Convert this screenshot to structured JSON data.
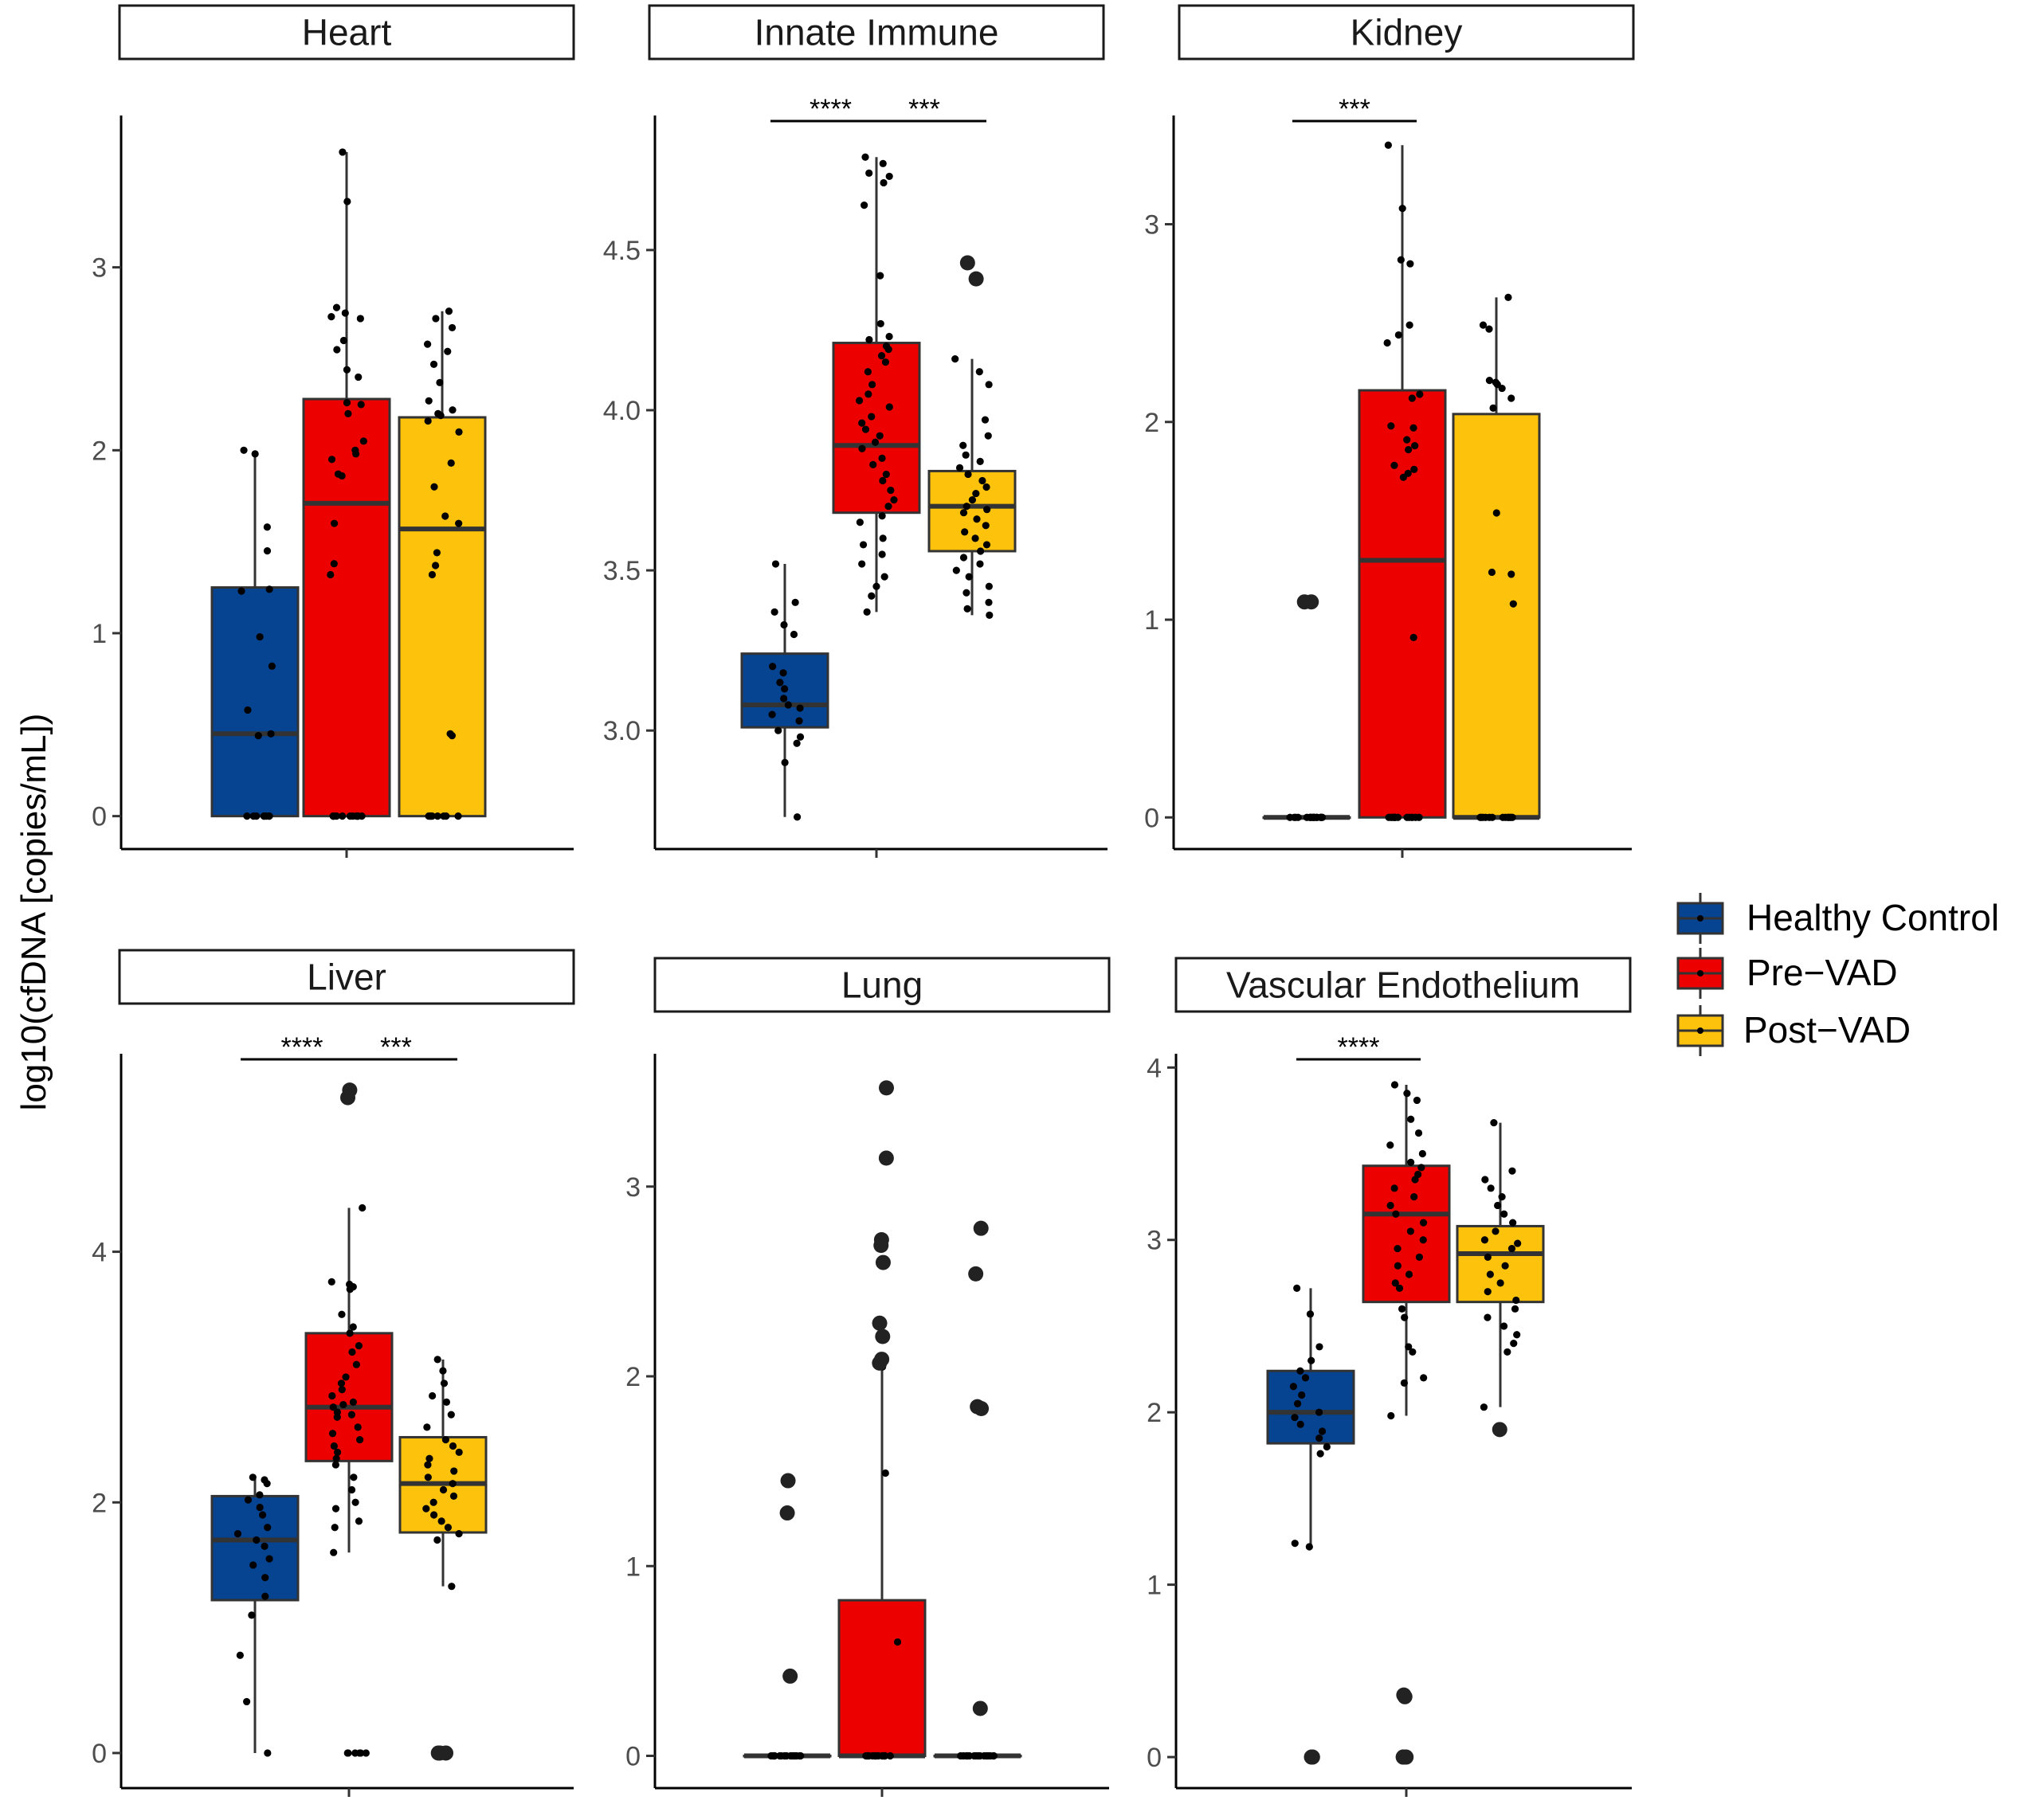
{
  "colors": {
    "Healthy Control": "#064390",
    "Pre-VAD": "#ec0000",
    "Post-VAD": "#fdc30c",
    "box_outline": "#333333",
    "point": "#000000"
  },
  "chart_data": {
    "type": "box",
    "ylabel": "log10(cfDNA [copies/mL])",
    "legend": {
      "position": "right",
      "entries": [
        "Healthy Control",
        "Pre−VAD",
        "Post−VAD"
      ]
    },
    "grid": false,
    "panels": [
      {
        "title": "Heart",
        "ylim": [
          -0.18,
          3.83
        ],
        "yticks": [
          0,
          1,
          2,
          3
        ],
        "groups": [
          {
            "name": "Healthy Control",
            "q1": 0,
            "median": 0.45,
            "q3": 1.25,
            "whisker_low": 0,
            "whisker_high": 1.98,
            "points": [
              2.0,
              1.98,
              1.58,
              1.45,
              1.24,
              1.23,
              0.98,
              0.82,
              0.58,
              0.45,
              0.44,
              0,
              0,
              0,
              0,
              0,
              0,
              0,
              0
            ],
            "outliers": []
          },
          {
            "name": "Pre-VAD",
            "q1": 0,
            "median": 1.71,
            "q3": 2.28,
            "whisker_low": 0,
            "whisker_high": 3.63,
            "points": [
              3.63,
              3.36,
              2.78,
              2.75,
              2.73,
              2.72,
              2.6,
              2.55,
              2.44,
              2.4,
              2.26,
              2.25,
              2.2,
              2.05,
              2.0,
              1.98,
              1.95,
              1.87,
              1.86,
              1.6,
              1.38,
              1.32,
              0,
              0,
              0,
              0,
              0,
              0,
              0,
              0,
              0,
              0,
              0,
              0
            ],
            "outliers": []
          },
          {
            "name": "Post-VAD",
            "q1": 0,
            "median": 1.57,
            "q3": 2.18,
            "whisker_low": 0,
            "whisker_high": 2.76,
            "points": [
              2.76,
              2.72,
              2.67,
              2.58,
              2.54,
              2.47,
              2.37,
              2.27,
              2.22,
              2.2,
              2.19,
              2.16,
              2.1,
              1.93,
              1.8,
              1.64,
              1.6,
              1.44,
              1.37,
              1.32,
              0.45,
              0.44,
              0,
              0,
              0,
              0,
              0,
              0,
              0,
              0
            ],
            "outliers": []
          }
        ],
        "significance": []
      },
      {
        "title": "Innate Immune",
        "ylim": [
          2.63,
          4.92
        ],
        "yticks": [
          3.0,
          3.5,
          4.0,
          4.5
        ],
        "groups": [
          {
            "name": "Healthy Control",
            "q1": 3.01,
            "median": 3.08,
            "q3": 3.24,
            "whisker_low": 2.73,
            "whisker_high": 3.52,
            "points": [
              3.52,
              3.4,
              3.37,
              3.33,
              3.3,
              3.2,
              3.18,
              3.15,
              3.13,
              3.1,
              3.08,
              3.07,
              3.05,
              3.03,
              3.0,
              2.98,
              2.96,
              2.9,
              2.73
            ],
            "outliers": []
          },
          {
            "name": "Pre-VAD",
            "q1": 3.68,
            "median": 3.89,
            "q3": 4.21,
            "whisker_low": 3.37,
            "whisker_high": 4.79,
            "points": [
              4.79,
              4.77,
              4.74,
              4.73,
              4.71,
              4.64,
              4.42,
              4.27,
              4.23,
              4.22,
              4.2,
              4.19,
              4.17,
              4.15,
              4.12,
              4.08,
              4.05,
              4.03,
              4.01,
              3.98,
              3.96,
              3.94,
              3.92,
              3.9,
              3.88,
              3.85,
              3.83,
              3.8,
              3.78,
              3.75,
              3.72,
              3.7,
              3.67,
              3.65,
              3.6,
              3.58,
              3.55,
              3.52,
              3.48,
              3.45,
              3.42,
              3.37
            ],
            "outliers": []
          },
          {
            "name": "Post-VAD",
            "q1": 3.56,
            "median": 3.7,
            "q3": 3.81,
            "whisker_low": 3.36,
            "whisker_high": 4.16,
            "points": [
              4.16,
              4.12,
              4.08,
              3.97,
              3.92,
              3.89,
              3.86,
              3.84,
              3.82,
              3.8,
              3.78,
              3.76,
              3.74,
              3.72,
              3.7,
              3.69,
              3.68,
              3.66,
              3.64,
              3.62,
              3.6,
              3.58,
              3.56,
              3.54,
              3.52,
              3.5,
              3.48,
              3.45,
              3.43,
              3.4,
              3.38,
              3.36
            ],
            "outliers": [
              4.46,
              4.41
            ]
          }
        ],
        "significance": [
          {
            "from": 0,
            "to": 1,
            "label": "****"
          },
          {
            "from": 1,
            "to": 2,
            "label": "***"
          }
        ]
      },
      {
        "title": "Kidney",
        "ylim": [
          -0.16,
          3.55
        ],
        "yticks": [
          0,
          1,
          2,
          3
        ],
        "groups": [
          {
            "name": "Healthy Control",
            "q1": 0,
            "median": 0,
            "q3": 0,
            "whisker_low": 0,
            "whisker_high": 0,
            "points": [
              0,
              0,
              0,
              0,
              0,
              0,
              0,
              0,
              0,
              0,
              0,
              0,
              0,
              0,
              0,
              0,
              0,
              0
            ],
            "outliers": [
              1.09,
              1.09
            ]
          },
          {
            "name": "Pre-VAD",
            "q1": 0,
            "median": 1.3,
            "q3": 2.16,
            "whisker_low": 0,
            "whisker_high": 3.4,
            "points": [
              3.4,
              3.08,
              2.82,
              2.8,
              2.49,
              2.44,
              2.4,
              2.14,
              2.12,
              1.98,
              1.97,
              1.91,
              1.88,
              1.86,
              1.78,
              1.76,
              1.74,
              1.72,
              0.91,
              0,
              0,
              0,
              0,
              0,
              0,
              0,
              0,
              0,
              0,
              0,
              0,
              0,
              0
            ],
            "outliers": []
          },
          {
            "name": "Post-VAD",
            "q1": 0,
            "median": 0,
            "q3": 2.04,
            "whisker_low": 0,
            "whisker_high": 2.63,
            "points": [
              2.63,
              2.49,
              2.47,
              2.21,
              2.2,
              2.19,
              2.17,
              2.12,
              2.07,
              1.54,
              1.24,
              1.23,
              1.08,
              0,
              0,
              0,
              0,
              0,
              0,
              0,
              0,
              0,
              0,
              0,
              0,
              0
            ],
            "outliers": []
          }
        ],
        "significance": [
          {
            "from": 0,
            "to": 1,
            "label": "***"
          }
        ]
      },
      {
        "title": "Liver",
        "ylim": [
          -0.28,
          5.58
        ],
        "yticks": [
          0,
          2,
          4
        ],
        "groups": [
          {
            "name": "Healthy Control",
            "q1": 1.22,
            "median": 1.7,
            "q3": 2.05,
            "whisker_low": 0,
            "whisker_high": 2.2,
            "points": [
              2.2,
              2.18,
              2.15,
              2.06,
              2.02,
              1.96,
              1.9,
              1.8,
              1.75,
              1.7,
              1.65,
              1.55,
              1.5,
              1.4,
              1.25,
              1.1,
              0.78,
              0.41,
              0
            ],
            "outliers": []
          },
          {
            "name": "Pre-VAD",
            "q1": 2.33,
            "median": 2.76,
            "q3": 3.35,
            "whisker_low": 1.6,
            "whisker_high": 4.35,
            "points": [
              4.35,
              3.76,
              3.74,
              3.72,
              3.7,
              3.5,
              3.4,
              3.35,
              3.25,
              3.2,
              3.1,
              3.0,
              2.95,
              2.9,
              2.85,
              2.8,
              2.78,
              2.76,
              2.72,
              2.7,
              2.68,
              2.6,
              2.55,
              2.5,
              2.45,
              2.4,
              2.35,
              2.3,
              2.2,
              2.1,
              2.0,
              1.95,
              1.85,
              1.8,
              1.6,
              0,
              0,
              0,
              0,
              0,
              0
            ],
            "outliers": [
              5.29,
              5.23
            ]
          },
          {
            "name": "Post-VAD",
            "q1": 1.76,
            "median": 2.15,
            "q3": 2.52,
            "whisker_low": 1.33,
            "whisker_high": 3.14,
            "points": [
              3.14,
              3.05,
              2.95,
              2.85,
              2.8,
              2.7,
              2.6,
              2.5,
              2.45,
              2.4,
              2.35,
              2.3,
              2.25,
              2.2,
              2.15,
              2.1,
              2.05,
              2.0,
              1.95,
              1.9,
              1.85,
              1.8,
              1.75,
              1.7,
              1.33
            ],
            "outliers": [
              0,
              0,
              0
            ]
          }
        ],
        "significance": [
          {
            "from": 0,
            "to": 1,
            "label": "****"
          },
          {
            "from": 1,
            "to": 2,
            "label": "***"
          }
        ]
      },
      {
        "title": "Lung",
        "ylim": [
          -0.17,
          3.7
        ],
        "yticks": [
          0,
          1,
          2,
          3
        ],
        "groups": [
          {
            "name": "Healthy Control",
            "q1": 0,
            "median": 0,
            "q3": 0,
            "whisker_low": 0,
            "whisker_high": 0,
            "points": [
              0,
              0,
              0,
              0,
              0,
              0,
              0,
              0,
              0,
              0,
              0,
              0,
              0,
              0,
              0,
              0,
              0,
              0
            ],
            "outliers": [
              1.45,
              1.28,
              0.42
            ]
          },
          {
            "name": "Pre-VAD",
            "q1": 0,
            "median": 0,
            "q3": 0.82,
            "whisker_low": 0,
            "whisker_high": 2.05,
            "points": [
              2.05,
              1.49,
              0.6,
              0,
              0,
              0,
              0,
              0,
              0,
              0,
              0,
              0,
              0,
              0,
              0,
              0,
              0,
              0,
              0,
              0,
              0
            ],
            "outliers": [
              3.52,
              3.15,
              2.72,
              2.69,
              2.6,
              2.28,
              2.21,
              2.09,
              2.07
            ]
          },
          {
            "name": "Post-VAD",
            "q1": 0,
            "median": 0,
            "q3": 0,
            "whisker_low": 0,
            "whisker_high": 0,
            "points": [
              0,
              0,
              0,
              0,
              0,
              0,
              0,
              0,
              0,
              0,
              0,
              0,
              0,
              0,
              0,
              0,
              0,
              0
            ],
            "outliers": [
              2.78,
              2.54,
              1.84,
              1.83,
              0.25
            ]
          }
        ],
        "significance": []
      },
      {
        "title": "Vascular Endothelium",
        "ylim": [
          -0.18,
          4.08
        ],
        "yticks": [
          0,
          1,
          2,
          3,
          4
        ],
        "groups": [
          {
            "name": "Healthy Control",
            "q1": 1.82,
            "median": 2.0,
            "q3": 2.24,
            "whisker_low": 1.22,
            "whisker_high": 2.72,
            "points": [
              2.72,
              2.57,
              2.38,
              2.3,
              2.24,
              2.2,
              2.15,
              2.1,
              2.05,
              2.0,
              1.97,
              1.93,
              1.89,
              1.85,
              1.8,
              1.76,
              1.24,
              1.22
            ],
            "outliers": [
              0,
              0
            ]
          },
          {
            "name": "Pre-VAD",
            "q1": 2.64,
            "median": 3.15,
            "q3": 3.43,
            "whisker_low": 1.98,
            "whisker_high": 3.9,
            "points": [
              3.9,
              3.85,
              3.81,
              3.7,
              3.62,
              3.55,
              3.5,
              3.45,
              3.42,
              3.38,
              3.35,
              3.3,
              3.25,
              3.2,
              3.15,
              3.1,
              3.05,
              3.0,
              2.95,
              2.9,
              2.85,
              2.8,
              2.75,
              2.72,
              2.6,
              2.55,
              2.38,
              2.35,
              2.2,
              2.17,
              1.98
            ],
            "outliers": [
              0.36,
              0.35,
              0,
              0,
              0
            ]
          },
          {
            "name": "Post-VAD",
            "q1": 2.64,
            "median": 2.92,
            "q3": 3.08,
            "whisker_low": 2.03,
            "whisker_high": 3.68,
            "points": [
              3.68,
              3.4,
              3.35,
              3.3,
              3.25,
              3.2,
              3.15,
              3.1,
              3.05,
              3.0,
              2.98,
              2.95,
              2.9,
              2.85,
              2.8,
              2.75,
              2.7,
              2.65,
              2.6,
              2.55,
              2.5,
              2.45,
              2.4,
              2.35,
              2.03
            ],
            "outliers": [
              1.9
            ]
          }
        ],
        "significance": [
          {
            "from": 0,
            "to": 1,
            "label": "****"
          }
        ]
      }
    ]
  }
}
